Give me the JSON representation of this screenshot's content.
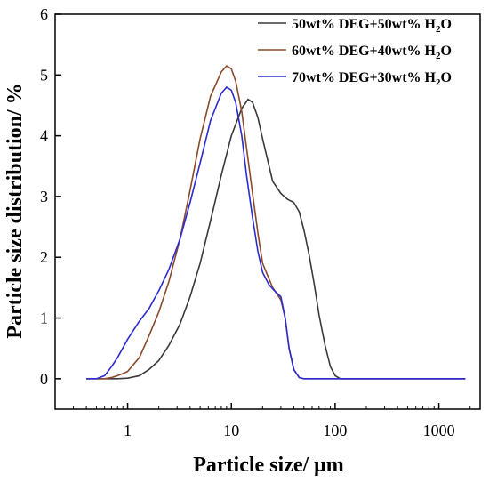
{
  "chart_data": {
    "type": "line",
    "xlabel": "Particle size/ μm",
    "ylabel": "Particle size distribution/ %",
    "x_scale": "log",
    "xlim": [
      0.2,
      2500
    ],
    "ylim": [
      -0.5,
      6
    ],
    "x_ticks": [
      1,
      10,
      100,
      1000
    ],
    "x_tick_labels": [
      "1",
      "10",
      "100",
      "1000"
    ],
    "y_ticks": [
      0,
      1,
      2,
      3,
      4,
      5,
      6
    ],
    "y_tick_labels": [
      "0",
      "1",
      "2",
      "3",
      "4",
      "5",
      "6"
    ],
    "grid": false,
    "legend_position": "top-right",
    "series": [
      {
        "name": "50wt% DEG+50wt% H",
        "name_sub": "2",
        "name_tail": "O",
        "color": "#3a3a3a",
        "x": [
          0.4,
          0.6,
          0.8,
          1.0,
          1.3,
          1.6,
          2.0,
          2.5,
          3.2,
          4.0,
          5.0,
          6.3,
          8.0,
          10,
          12.6,
          14.5,
          16,
          18,
          20,
          25,
          30,
          35,
          40,
          45,
          50,
          56,
          63,
          70,
          80,
          90,
          100,
          112,
          126,
          200,
          500,
          1000,
          1800
        ],
        "y": [
          0,
          0,
          0,
          0.01,
          0.05,
          0.15,
          0.3,
          0.55,
          0.9,
          1.35,
          1.9,
          2.6,
          3.35,
          4.0,
          4.45,
          4.6,
          4.55,
          4.3,
          3.95,
          3.25,
          3.05,
          2.95,
          2.9,
          2.75,
          2.45,
          2.05,
          1.55,
          1.05,
          0.55,
          0.2,
          0.05,
          0,
          0,
          0,
          0,
          0,
          0
        ]
      },
      {
        "name": "60wt% DEG+40wt% H",
        "name_sub": "2",
        "name_tail": "O",
        "color": "#8b4a2b",
        "x": [
          0.4,
          0.5,
          0.6,
          0.7,
          0.8,
          1.0,
          1.3,
          1.6,
          2.0,
          2.5,
          3.2,
          4.0,
          5.0,
          6.3,
          8.0,
          9.0,
          10,
          11,
          12.6,
          14,
          16,
          18,
          20,
          25,
          30,
          33,
          36,
          40,
          45,
          50,
          100,
          500,
          1000,
          1800
        ],
        "y": [
          0,
          0,
          0,
          0.02,
          0.05,
          0.12,
          0.35,
          0.7,
          1.1,
          1.6,
          2.3,
          3.1,
          3.95,
          4.65,
          5.05,
          5.15,
          5.1,
          4.9,
          4.4,
          3.8,
          3.05,
          2.4,
          1.9,
          1.5,
          1.3,
          1.0,
          0.5,
          0.15,
          0.02,
          0,
          0,
          0,
          0,
          0
        ]
      },
      {
        "name": "70wt% DEG+30wt% H",
        "name_sub": "2",
        "name_tail": "O",
        "color": "#2b2bd0",
        "x": [
          0.4,
          0.5,
          0.6,
          0.7,
          0.8,
          1.0,
          1.3,
          1.6,
          2.0,
          2.5,
          3.2,
          4.0,
          5.0,
          6.3,
          8.0,
          9.0,
          10,
          11,
          12.6,
          14,
          16,
          18,
          20,
          23,
          26,
          30,
          33,
          36,
          40,
          45,
          50,
          100,
          500,
          1000,
          1800
        ],
        "y": [
          0,
          0,
          0.05,
          0.2,
          0.35,
          0.65,
          0.95,
          1.15,
          1.45,
          1.8,
          2.3,
          2.9,
          3.55,
          4.25,
          4.7,
          4.8,
          4.75,
          4.55,
          4.0,
          3.35,
          2.65,
          2.1,
          1.75,
          1.55,
          1.45,
          1.35,
          1.0,
          0.5,
          0.15,
          0.02,
          0,
          0,
          0,
          0,
          0
        ]
      }
    ]
  }
}
